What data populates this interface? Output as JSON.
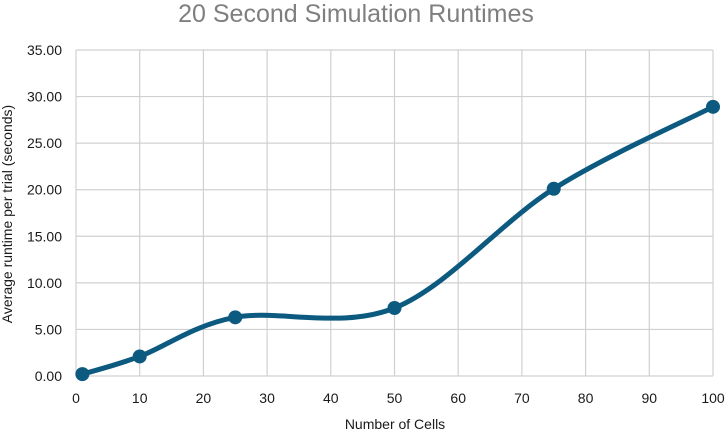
{
  "chart_data": {
    "type": "line",
    "title": "20 Second Simulation Runtimes",
    "xlabel": "Number of Cells",
    "ylabel": "Average runtime per trial (seconds)",
    "xlim": [
      0,
      100
    ],
    "ylim": [
      0,
      35
    ],
    "xticks": [
      "0",
      "10",
      "20",
      "30",
      "40",
      "50",
      "60",
      "70",
      "80",
      "90",
      "100"
    ],
    "yticks": [
      "0.00",
      "5.00",
      "10.00",
      "15.00",
      "20.00",
      "25.00",
      "30.00",
      "35.00"
    ],
    "grid": true,
    "smooth": true,
    "series": [
      {
        "x": [
          1,
          10,
          25,
          50,
          75,
          100
        ],
        "values": [
          0.2,
          2.1,
          6.3,
          7.3,
          20.1,
          28.9
        ],
        "color": "#0d5a80"
      }
    ]
  }
}
